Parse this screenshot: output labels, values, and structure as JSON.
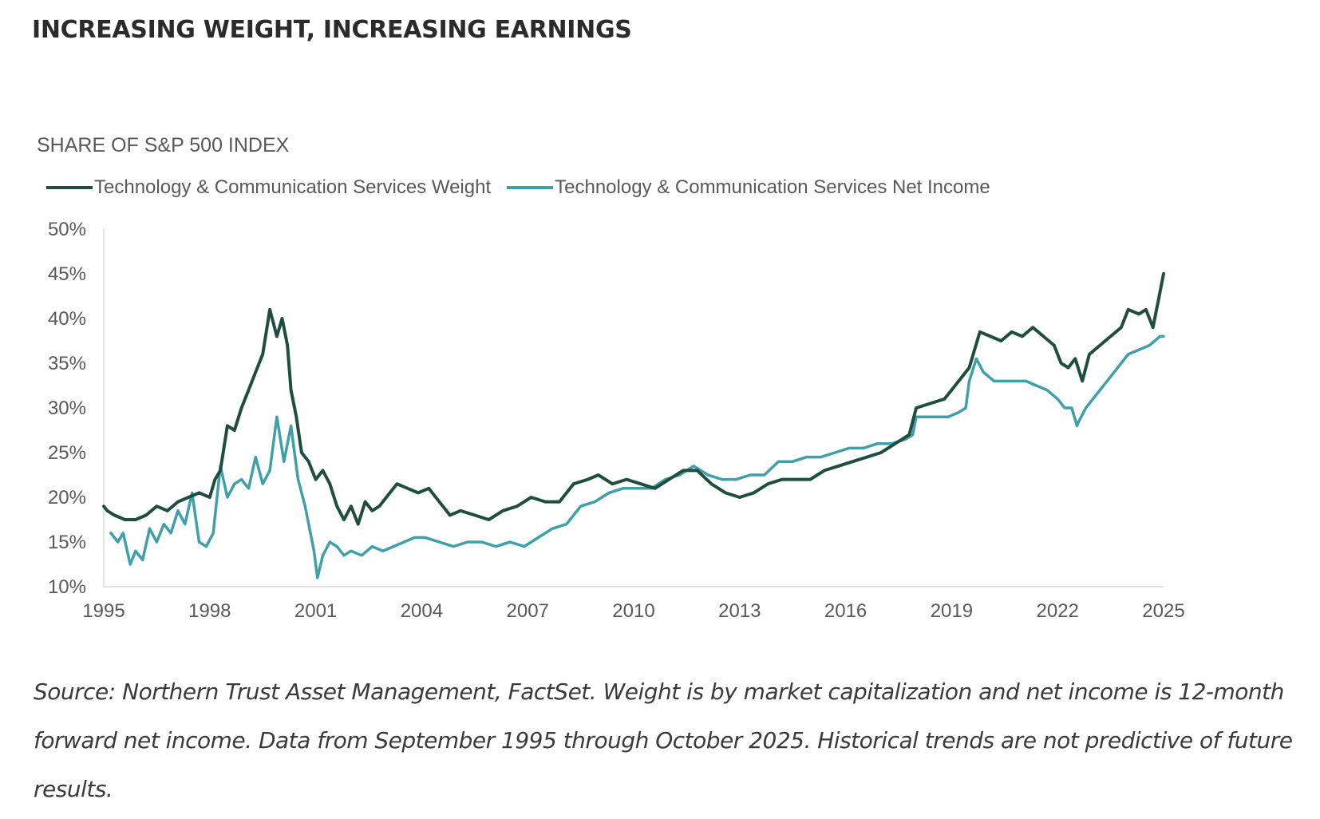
{
  "page": {
    "title": "INCREASING WEIGHT, INCREASING EARNINGS",
    "source_note": "Source: Northern Trust Asset Management, FactSet. Weight is by market capitalization and net income is 12-month forward net income. Data from September 1995 through October 2025. Historical trends are not predictive of future results."
  },
  "chart_data": {
    "type": "line",
    "title": "SHARE OF S&P 500 INDEX",
    "xlabel": "",
    "ylabel": "",
    "xlim": [
      1995,
      2025
    ],
    "ylim": [
      10,
      50
    ],
    "x_ticks": [
      "1995",
      "1998",
      "2001",
      "2004",
      "2007",
      "2010",
      "2013",
      "2016",
      "2019",
      "2022",
      "2025"
    ],
    "y_ticks": [
      "10%",
      "15%",
      "20%",
      "25%",
      "30%",
      "35%",
      "40%",
      "45%",
      "50%"
    ],
    "y_unit": "%",
    "grid": false,
    "legend_position": "top-left",
    "series": [
      {
        "name": "Technology & Communication Services Weight",
        "color": "#1f4d3f",
        "x": [
          1995.0,
          1995.1,
          1995.3,
          1995.6,
          1995.9,
          1996.2,
          1996.5,
          1996.8,
          1997.1,
          1997.4,
          1997.7,
          1998.0,
          1998.15,
          1998.3,
          1998.5,
          1998.7,
          1998.9,
          1999.1,
          1999.3,
          1999.5,
          1999.7,
          1999.9,
          2000.05,
          2000.2,
          2000.3,
          2000.45,
          2000.6,
          2000.8,
          2001.0,
          2001.2,
          2001.4,
          2001.6,
          2001.8,
          2002.0,
          2002.2,
          2002.4,
          2002.6,
          2002.8,
          2003.0,
          2003.3,
          2003.6,
          2003.9,
          2004.2,
          2004.5,
          2004.8,
          2005.1,
          2005.5,
          2005.9,
          2006.3,
          2006.7,
          2007.1,
          2007.5,
          2007.9,
          2008.3,
          2008.7,
          2009.0,
          2009.4,
          2009.8,
          2010.2,
          2010.6,
          2011.0,
          2011.4,
          2011.8,
          2012.2,
          2012.6,
          2013.0,
          2013.4,
          2013.8,
          2014.2,
          2014.6,
          2015.0,
          2015.4,
          2015.8,
          2016.2,
          2016.6,
          2017.0,
          2017.4,
          2017.8,
          2018.0,
          2018.4,
          2018.8,
          2019.2,
          2019.5,
          2019.8,
          2020.1,
          2020.4,
          2020.7,
          2021.0,
          2021.3,
          2021.6,
          2021.9,
          2022.1,
          2022.3,
          2022.5,
          2022.7,
          2022.9,
          2023.2,
          2023.5,
          2023.8,
          2024.0,
          2024.3,
          2024.5,
          2024.7,
          2024.85,
          2025.0
        ],
        "y": [
          19,
          18.5,
          18,
          17.5,
          17.5,
          18,
          19,
          18.5,
          19.5,
          20,
          20.5,
          20,
          22,
          23,
          28,
          27.5,
          30,
          32,
          34,
          36,
          41,
          38,
          40,
          37,
          32,
          29,
          25,
          24,
          22,
          23,
          21.5,
          19,
          17.5,
          19,
          17,
          19.5,
          18.5,
          19,
          20,
          21.5,
          21,
          20.5,
          21,
          19.5,
          18,
          18.5,
          18,
          17.5,
          18.5,
          19,
          20,
          19.5,
          19.5,
          21.5,
          22,
          22.5,
          21.5,
          22,
          21.5,
          21,
          22,
          23,
          23,
          21.5,
          20.5,
          20,
          20.5,
          21.5,
          22,
          22,
          22,
          23,
          23.5,
          24,
          24.5,
          25,
          26,
          27,
          30,
          30.5,
          31,
          33,
          34.5,
          38.5,
          38,
          37.5,
          38.5,
          38,
          39,
          38,
          37,
          35,
          34.5,
          35.5,
          33,
          36,
          37,
          38,
          39,
          41,
          40.5,
          41,
          39,
          42,
          45
        ]
      },
      {
        "name": "Technology & Communication Services  Net Income",
        "color": "#3fa0aa",
        "x": [
          1995.2,
          1995.4,
          1995.55,
          1995.75,
          1995.9,
          1996.1,
          1996.3,
          1996.5,
          1996.7,
          1996.9,
          1997.1,
          1997.3,
          1997.5,
          1997.7,
          1997.9,
          1998.1,
          1998.3,
          1998.5,
          1998.7,
          1998.9,
          1999.1,
          1999.3,
          1999.5,
          1999.7,
          1999.9,
          2000.1,
          2000.3,
          2000.5,
          2000.7,
          2000.85,
          2000.95,
          2001.05,
          2001.2,
          2001.4,
          2001.6,
          2001.8,
          2002.0,
          2002.3,
          2002.6,
          2002.9,
          2003.2,
          2003.5,
          2003.8,
          2004.1,
          2004.5,
          2004.9,
          2005.3,
          2005.7,
          2006.1,
          2006.5,
          2006.9,
          2007.3,
          2007.7,
          2008.1,
          2008.5,
          2008.9,
          2009.3,
          2009.7,
          2010.1,
          2010.5,
          2010.9,
          2011.3,
          2011.7,
          2012.1,
          2012.5,
          2012.9,
          2013.3,
          2013.7,
          2014.1,
          2014.5,
          2014.9,
          2015.3,
          2015.7,
          2016.1,
          2016.5,
          2016.9,
          2017.3,
          2017.7,
          2017.9,
          2018.0,
          2018.3,
          2018.6,
          2018.9,
          2019.2,
          2019.4,
          2019.5,
          2019.7,
          2019.9,
          2020.2,
          2020.5,
          2020.8,
          2021.1,
          2021.4,
          2021.7,
          2022.0,
          2022.2,
          2022.4,
          2022.55,
          2022.6,
          2022.8,
          2023.1,
          2023.4,
          2023.7,
          2024.0,
          2024.3,
          2024.6,
          2024.9,
          2025.0
        ],
        "y": [
          16,
          15,
          16,
          12.5,
          14,
          13,
          16.5,
          15,
          17,
          16,
          18.5,
          17,
          20.5,
          15,
          14.5,
          16,
          23.5,
          20,
          21.5,
          22,
          21,
          24.5,
          21.5,
          23,
          29,
          24,
          28,
          22,
          19,
          16,
          14,
          11,
          13.5,
          15,
          14.5,
          13.5,
          14,
          13.5,
          14.5,
          14,
          14.5,
          15,
          15.5,
          15.5,
          15,
          14.5,
          15,
          15,
          14.5,
          15,
          14.5,
          15.5,
          16.5,
          17,
          19,
          19.5,
          20.5,
          21,
          21,
          21,
          22,
          22.5,
          23.5,
          22.5,
          22,
          22,
          22.5,
          22.5,
          24,
          24,
          24.5,
          24.5,
          25,
          25.5,
          25.5,
          26,
          26,
          26.5,
          27,
          29,
          29,
          29,
          29,
          29.5,
          30,
          33,
          35.5,
          34,
          33,
          33,
          33,
          33,
          32.5,
          32,
          31,
          30,
          30,
          28,
          28.5,
          30,
          31.5,
          33,
          34.5,
          36,
          36.5,
          37,
          38,
          38
        ]
      }
    ]
  }
}
